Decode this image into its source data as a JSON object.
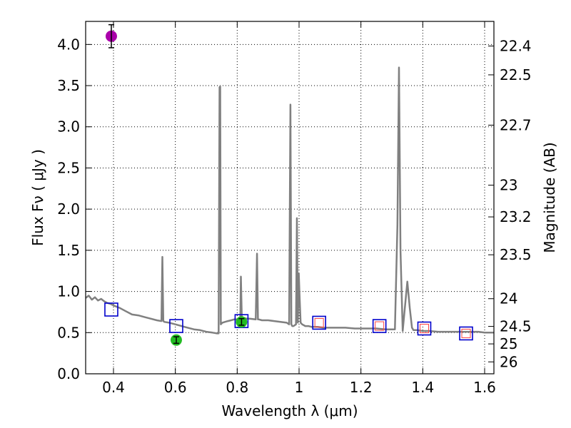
{
  "chart_data": {
    "type": "line",
    "xlabel": "Wavelength  λ (μm)",
    "ylabel": "Flux  Fν  ( μJy )",
    "ylabel_right": "Magnitude (AB)",
    "xlim": [
      0.31,
      1.63
    ],
    "ylim": [
      0.0,
      4.28
    ],
    "x_ticks": [
      0.4,
      0.6,
      0.8,
      1.0,
      1.2,
      1.4,
      1.6
    ],
    "x_tick_labels": [
      "0.4",
      "0.6",
      "0.8",
      "1",
      "1.2",
      "1.4",
      "1.6"
    ],
    "y_ticks": [
      0.0,
      0.5,
      1.0,
      1.5,
      2.0,
      2.5,
      3.0,
      3.5,
      4.0
    ],
    "y_tick_labels": [
      "0.0",
      "0.5",
      "1.0",
      "1.5",
      "2.0",
      "2.5",
      "3.0",
      "3.5",
      "4.0"
    ],
    "right_ticks": [
      22.4,
      22.5,
      22.7,
      23,
      23.2,
      23.5,
      24,
      24.5,
      25,
      26
    ],
    "right_tick_labels": [
      "22.4",
      "22.5",
      "22.7",
      "23",
      "23.2",
      "23.5",
      "24",
      "24.5",
      "25",
      "26"
    ],
    "grid": true,
    "colors": {
      "model": "#808080",
      "model_box": "#0000cc",
      "obs_box": "#ff4444",
      "green": "#22bb22",
      "magenta": "#aa00aa"
    },
    "series": [
      {
        "name": "model spectrum",
        "style": "line",
        "x": [
          0.31,
          0.32,
          0.33,
          0.34,
          0.35,
          0.36,
          0.37,
          0.38,
          0.39,
          0.4,
          0.42,
          0.44,
          0.46,
          0.48,
          0.5,
          0.52,
          0.54,
          0.555,
          0.558,
          0.561,
          0.565,
          0.58,
          0.6,
          0.62,
          0.64,
          0.66,
          0.68,
          0.7,
          0.72,
          0.735,
          0.74,
          0.743,
          0.745,
          0.747,
          0.752,
          0.76,
          0.77,
          0.78,
          0.79,
          0.8,
          0.81,
          0.812,
          0.815,
          0.818,
          0.82,
          0.83,
          0.84,
          0.86,
          0.864,
          0.867,
          0.87,
          0.88,
          0.9,
          0.92,
          0.94,
          0.96,
          0.968,
          0.972,
          0.975,
          0.978,
          0.982,
          0.99,
          0.993,
          0.996,
          0.999,
          1.002,
          1.005,
          1.01,
          1.015,
          1.02,
          1.03,
          1.04,
          1.06,
          1.08,
          1.1,
          1.12,
          1.15,
          1.18,
          1.2,
          1.22,
          1.25,
          1.28,
          1.3,
          1.31,
          1.318,
          1.323,
          1.328,
          1.335,
          1.342,
          1.35,
          1.358,
          1.365,
          1.37,
          1.38,
          1.4,
          1.42,
          1.45,
          1.48,
          1.5,
          1.52,
          1.55,
          1.58,
          1.6,
          1.63
        ],
        "y": [
          0.92,
          0.95,
          0.9,
          0.93,
          0.89,
          0.91,
          0.88,
          0.86,
          0.85,
          0.83,
          0.8,
          0.76,
          0.72,
          0.71,
          0.69,
          0.67,
          0.65,
          0.64,
          1.42,
          0.64,
          0.63,
          0.62,
          0.6,
          0.58,
          0.56,
          0.54,
          0.53,
          0.51,
          0.5,
          0.49,
          0.49,
          3.48,
          3.49,
          0.6,
          0.62,
          0.63,
          0.64,
          0.65,
          0.66,
          0.66,
          0.67,
          1.18,
          0.67,
          0.68,
          0.68,
          0.67,
          0.67,
          0.66,
          1.46,
          0.66,
          0.66,
          0.65,
          0.65,
          0.64,
          0.63,
          0.62,
          0.6,
          3.27,
          0.6,
          0.58,
          0.58,
          0.6,
          1.89,
          0.62,
          1.22,
          0.9,
          0.62,
          0.6,
          0.59,
          0.58,
          0.58,
          0.57,
          0.57,
          0.56,
          0.56,
          0.56,
          0.56,
          0.55,
          0.55,
          0.55,
          0.55,
          0.54,
          0.54,
          0.54,
          1.8,
          3.72,
          1.5,
          0.52,
          0.8,
          1.12,
          0.8,
          0.56,
          0.53,
          0.53,
          0.52,
          0.52,
          0.51,
          0.51,
          0.51,
          0.51,
          0.51,
          0.51,
          0.5,
          0.5
        ]
      },
      {
        "name": "model photometry",
        "style": "open-square",
        "x": [
          0.393,
          0.603,
          0.814,
          1.065,
          1.26,
          1.405,
          1.54
        ],
        "y": [
          0.78,
          0.58,
          0.64,
          0.62,
          0.58,
          0.55,
          0.49
        ]
      },
      {
        "name": "observed photometry",
        "style": "open-square-small",
        "x": [
          1.065,
          1.26,
          1.405,
          1.54
        ],
        "y": [
          0.62,
          0.58,
          0.55,
          0.49
        ]
      },
      {
        "name": "green detections",
        "style": "filled-circle",
        "x": [
          0.603,
          0.814
        ],
        "y": [
          0.41,
          0.63
        ],
        "yerr": [
          0.04,
          0.04
        ]
      },
      {
        "name": "magenta detection",
        "style": "filled-circle",
        "x": [
          0.393
        ],
        "y": [
          4.1
        ],
        "yerr": [
          0.14
        ]
      }
    ]
  }
}
